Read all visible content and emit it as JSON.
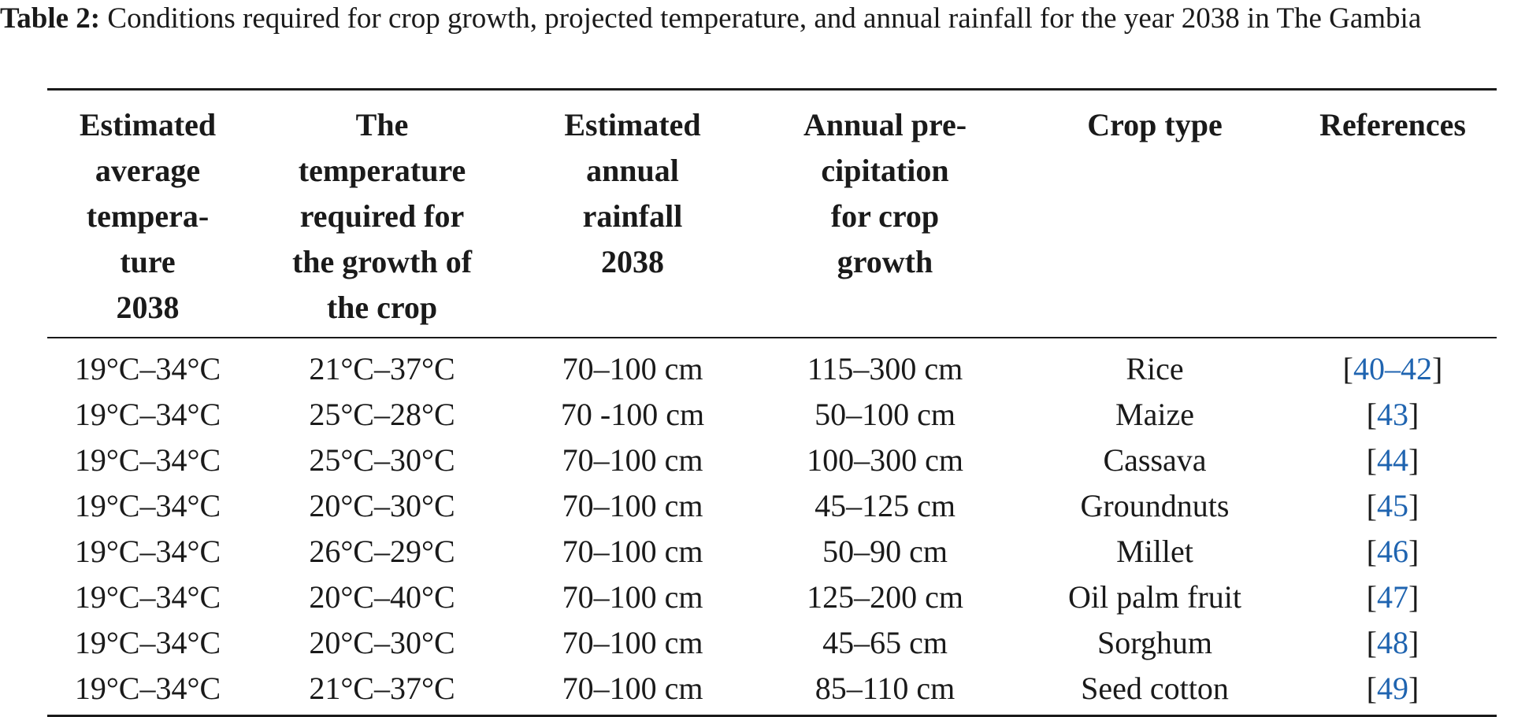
{
  "caption": {
    "label": "Table 2:",
    "text": " Conditions required for crop growth, projected temperature, and annual rainfall for the year 2038 in The Gambia"
  },
  "table": {
    "headers": [
      [
        "Estimated",
        "average",
        "tempera-",
        "ture",
        "2038"
      ],
      [
        "The",
        "temperature",
        "required for",
        "the growth of",
        "the crop"
      ],
      [
        "Estimated",
        "annual",
        "rainfall",
        "2038"
      ],
      [
        "Annual pre-",
        "cipitation",
        "for crop",
        "growth"
      ],
      [
        "Crop type"
      ],
      [
        "References"
      ]
    ],
    "rows": [
      {
        "avg_temp": "19°C–34°C",
        "req_temp": "21°C–37°C",
        "rainfall": "70–100 cm",
        "precip": "115–300 cm",
        "crop": "Rice",
        "ref_start": "40",
        "ref_sep": "–",
        "ref_end": "42"
      },
      {
        "avg_temp": "19°C–34°C",
        "req_temp": "25°C–28°C",
        "rainfall": "70 -100 cm",
        "precip": "50–100 cm",
        "crop": "Maize",
        "ref_start": "43"
      },
      {
        "avg_temp": "19°C–34°C",
        "req_temp": "25°C–30°C",
        "rainfall": "70–100 cm",
        "precip": "100–300 cm",
        "crop": "Cassava",
        "ref_start": "44"
      },
      {
        "avg_temp": "19°C–34°C",
        "req_temp": "20°C–30°C",
        "rainfall": "70–100 cm",
        "precip": "45–125 cm",
        "crop": "Groundnuts",
        "ref_start": "45"
      },
      {
        "avg_temp": "19°C–34°C",
        "req_temp": "26°C–29°C",
        "rainfall": "70–100 cm",
        "precip": "50–90 cm",
        "crop": "Millet",
        "ref_start": "46"
      },
      {
        "avg_temp": "19°C–34°C",
        "req_temp": "20°C–40°C",
        "rainfall": "70–100 cm",
        "precip": "125–200 cm",
        "crop": "Oil palm fruit",
        "ref_start": "47"
      },
      {
        "avg_temp": "19°C–34°C",
        "req_temp": "20°C–30°C",
        "rainfall": "70–100 cm",
        "precip": "45–65 cm",
        "crop": "Sorghum",
        "ref_start": "48"
      },
      {
        "avg_temp": "19°C–34°C",
        "req_temp": "21°C–37°C",
        "rainfall": "70–100 cm",
        "precip": "85–110 cm",
        "crop": "Seed cotton",
        "ref_start": "49"
      }
    ]
  },
  "colors": {
    "text": "#1a1a1a",
    "link": "#1f64b0",
    "background": "#ffffff"
  }
}
